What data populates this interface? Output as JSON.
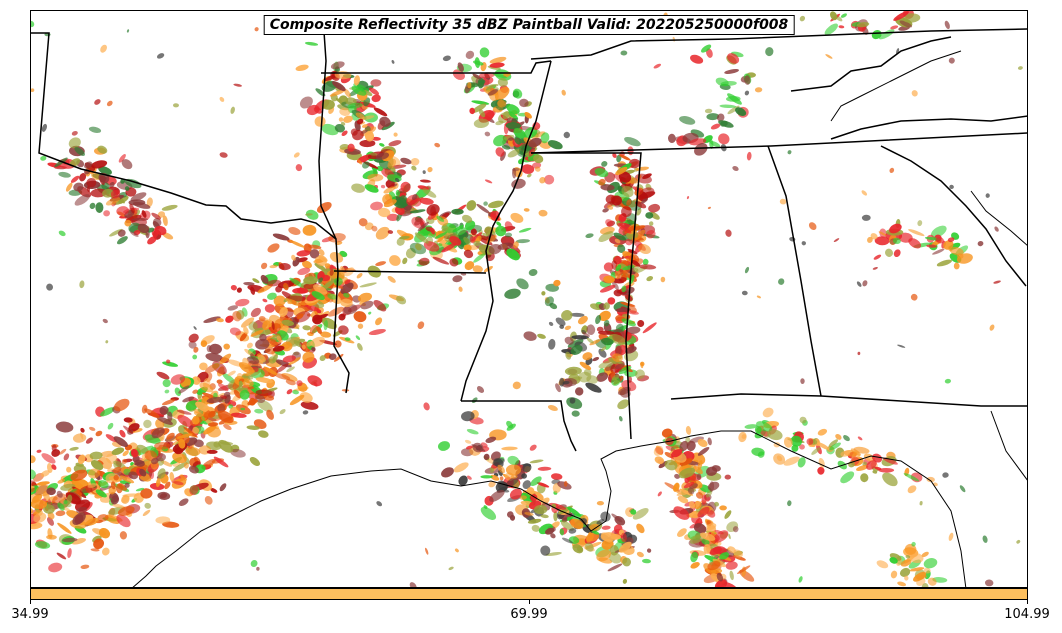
{
  "title": "Composite Reflectivity 35 dBZ Paintball Valid: 202205250000f008",
  "colorbar": {
    "color": "#fdbf5e",
    "ticks": [
      "34.99",
      "69.99",
      "104.99"
    ]
  },
  "palette": {
    "red": "#e8262b",
    "dark_red": "#b50f0f",
    "orange": "#f7931e",
    "orange_red": "#e6550d",
    "light_orange": "#fdae4f",
    "green": "#2fce2f",
    "dark_green": "#2e7d32",
    "olive": "#9aa33a",
    "brown": "#8b3a3a",
    "dark_gray": "#3c3c3c"
  },
  "map": {
    "boundary_color": "#000000",
    "background": "#ffffff"
  }
}
